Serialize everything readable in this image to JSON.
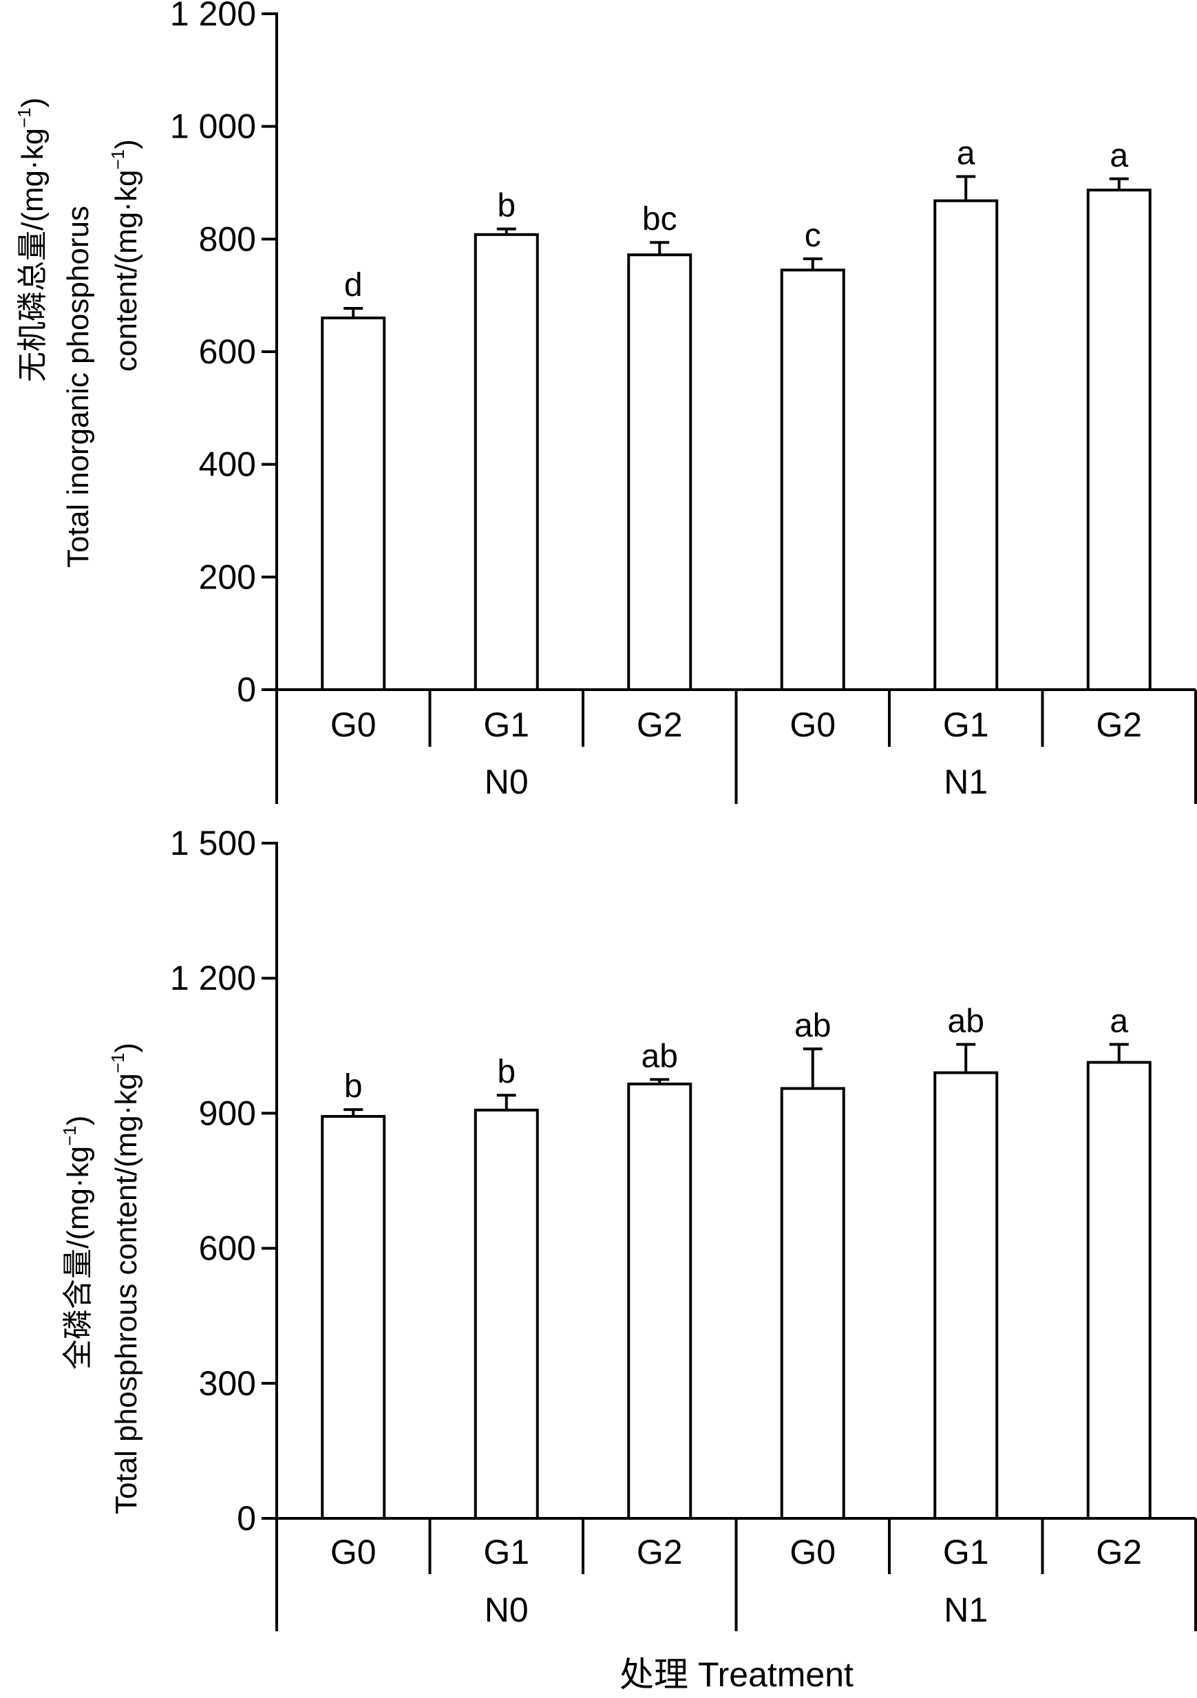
{
  "chart_data": [
    {
      "type": "bar",
      "groups": [
        {
          "label": "N0",
          "categories": [
            "G0",
            "G1",
            "G2"
          ]
        },
        {
          "label": "N1",
          "categories": [
            "G0",
            "G1",
            "G2"
          ]
        }
      ],
      "categories": [
        "G0",
        "G1",
        "G2",
        "G0",
        "G1",
        "G2"
      ],
      "values": [
        660,
        808,
        772,
        745,
        868,
        887
      ],
      "errors": [
        17,
        10,
        22,
        20,
        43,
        20
      ],
      "significance": [
        "d",
        "b",
        "bc",
        "c",
        "a",
        "a"
      ],
      "ylabel_cn": "无机磷总量/(mg·kg",
      "ylabel_cn_close": ")",
      "ylabel_en_line1": "Total inorganic phosphorus",
      "ylabel_en_line2": "content/(mg·kg",
      "ylabel_en_close": ")",
      "ylabel_sup": "−1",
      "ylim": [
        0,
        1200
      ],
      "yticks": [
        0,
        200,
        400,
        600,
        800,
        1000,
        1200
      ],
      "ytick_labels": [
        "0",
        "200",
        "400",
        "600",
        "800",
        "1 000",
        "1 200"
      ],
      "grid": false
    },
    {
      "type": "bar",
      "groups": [
        {
          "label": "N0",
          "categories": [
            "G0",
            "G1",
            "G2"
          ]
        },
        {
          "label": "N1",
          "categories": [
            "G0",
            "G1",
            "G2"
          ]
        }
      ],
      "categories": [
        "G0",
        "G1",
        "G2",
        "G0",
        "G1",
        "G2"
      ],
      "values": [
        893,
        907,
        965,
        955,
        990,
        1013
      ],
      "errors": [
        15,
        33,
        10,
        88,
        63,
        40
      ],
      "significance": [
        "b",
        "b",
        "ab",
        "ab",
        "ab",
        "a"
      ],
      "ylabel_cn": "全磷含量/(mg·kg",
      "ylabel_cn_close": ")",
      "ylabel_en": "Total phosphrous content/(mg·kg",
      "ylabel_en_close": ")",
      "ylabel_sup": "−1",
      "xlabel": "处理 Treatment",
      "ylim": [
        0,
        1500
      ],
      "yticks": [
        0,
        300,
        600,
        900,
        1200,
        1500
      ],
      "ytick_labels": [
        "0",
        "300",
        "600",
        "900",
        "1 200",
        "1 500"
      ],
      "grid": false
    }
  ]
}
